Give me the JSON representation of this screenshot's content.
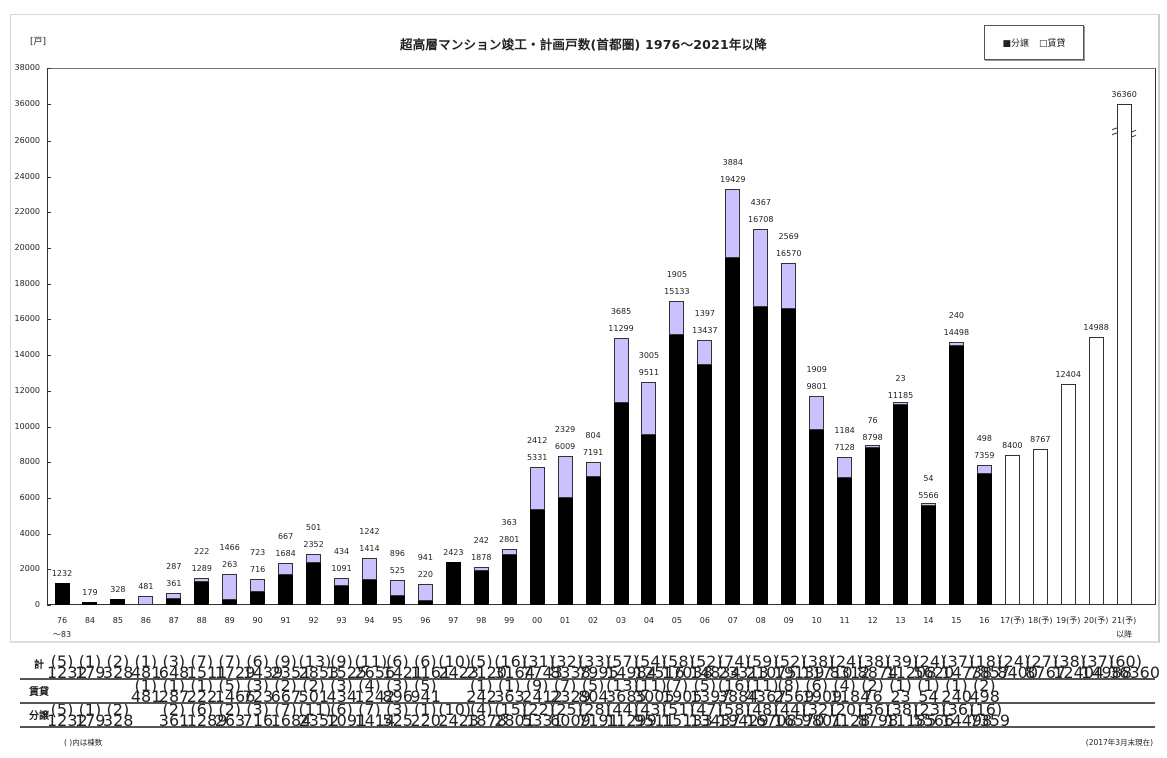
{
  "header": {
    "unit_label": "[戸]",
    "title": "超高層マンション竣工・計画戸数(首都圏) 1976〜2021年以降",
    "legend": {
      "sale": "■分譲",
      "rental": "□賃貸"
    }
  },
  "colors": {
    "sale": "#000000",
    "rental": "#ccc0ff",
    "planned": "#ffffff"
  },
  "y_axis": {
    "ticks": [
      "38000",
      "36000",
      "26000",
      "24000",
      "22000",
      "20000",
      "18000",
      "16000",
      "14000",
      "12000",
      "10000",
      "8000",
      "6000",
      "4000",
      "2000",
      "0"
    ]
  },
  "chart_data": {
    "type": "bar",
    "stacked": true,
    "title": "超高層マンション竣工・計画戸数(首都圏) 1976〜2021年以降",
    "ylabel": "[戸]",
    "xlabel": "",
    "ylim": [
      0,
      38000
    ],
    "axis_break": "26000〜36000",
    "legend_position": "top-right",
    "grid": false,
    "categories": [
      "76〜83",
      "84",
      "85",
      "86",
      "87",
      "88",
      "89",
      "90",
      "91",
      "92",
      "93",
      "94",
      "95",
      "96",
      "97",
      "98",
      "99",
      "00",
      "01",
      "02",
      "03",
      "04",
      "05",
      "06",
      "07",
      "08",
      "09",
      "10",
      "11",
      "12",
      "13",
      "14",
      "15",
      "16",
      "17(予)",
      "18(予)",
      "19(予)",
      "20(予)",
      "21(予)以降"
    ],
    "series": [
      {
        "name": "分譲",
        "values": [
          1232,
          179,
          328,
          0,
          361,
          1289,
          263,
          716,
          1684,
          2352,
          1091,
          1414,
          525,
          220,
          2423,
          1878,
          2801,
          5331,
          6009,
          7191,
          11299,
          9511,
          15133,
          13437,
          19429,
          16708,
          16570,
          9801,
          7128,
          8798,
          11185,
          5566,
          14498,
          7359,
          null,
          null,
          null,
          null,
          null
        ]
      },
      {
        "name": "賃貸",
        "values": [
          0,
          0,
          0,
          481,
          287,
          222,
          1466,
          723,
          667,
          501,
          434,
          1242,
          896,
          941,
          0,
          242,
          363,
          2412,
          2329,
          804,
          3685,
          3005,
          1905,
          1397,
          3884,
          4367,
          2569,
          1909,
          1184,
          76,
          23,
          54,
          240,
          498,
          null,
          null,
          null,
          null,
          null
        ]
      },
      {
        "name": "計画(合計)",
        "values": [
          null,
          null,
          null,
          null,
          null,
          null,
          null,
          null,
          null,
          null,
          null,
          null,
          null,
          null,
          null,
          null,
          null,
          null,
          null,
          null,
          null,
          null,
          null,
          null,
          null,
          null,
          null,
          null,
          null,
          null,
          null,
          null,
          null,
          null,
          8400,
          8767,
          12404,
          14988,
          36360
        ]
      }
    ],
    "totals": [
      1232,
      179,
      328,
      481,
      648,
      1511,
      1729,
      1439,
      2351,
      2853,
      1525,
      2656,
      1421,
      1161,
      2423,
      2120,
      3164,
      7743,
      8338,
      7995,
      14984,
      12516,
      17038,
      14834,
      23313,
      21075,
      19139,
      11710,
      8312,
      8874,
      11208,
      5620,
      14738,
      7857,
      8400,
      8767,
      12404,
      14988,
      36360
    ]
  },
  "table": {
    "row_labels": {
      "total": "計",
      "rental": "賃貸",
      "sale": "分譲"
    },
    "total_counts": [
      "(5)",
      "(1)",
      "(2)",
      "(1)",
      "(3)",
      "(7)",
      "(7)",
      "(6)",
      "(9)",
      "(13)",
      "(9)",
      "(11)",
      "(6)",
      "(6)",
      "(10)",
      "(5)",
      "(16)",
      "(31)",
      "(32)",
      "(33)",
      "(57)",
      "(54)",
      "(58)",
      "(52)",
      "(74)",
      "(59)",
      "(52)",
      "(38)",
      "(24)",
      "(38)",
      "(39)",
      "(24)",
      "(37)",
      "(18)",
      "(24)",
      "(27)",
      "(38)",
      "(37)",
      "(60)"
    ],
    "total_units": [
      "1232",
      "179",
      "328",
      "481",
      "648",
      "1511",
      "1729",
      "1439",
      "2351",
      "2853",
      "1525",
      "2656",
      "1421",
      "1161",
      "2423",
      "2120",
      "3164",
      "7743",
      "8338",
      "7995",
      "14984",
      "12516",
      "17038",
      "14834",
      "23313",
      "21075",
      "19139",
      "11710",
      "8312",
      "8874",
      "11208",
      "5620",
      "14738",
      "7857",
      "8400",
      "8767",
      "12404",
      "14988",
      "36360"
    ],
    "rental_counts": [
      "",
      "",
      "",
      "(1)",
      "(1)",
      "(1)",
      "(5)",
      "(3)",
      "(2)",
      "(2)",
      "(3)",
      "(4)",
      "(3)",
      "(5)",
      "",
      "(1)",
      "(1)",
      "(9)",
      "(7)",
      "(5)",
      "(13)",
      "(11)",
      "(7)",
      "(5)",
      "(16)",
      "(11)",
      "(8)",
      "(6)",
      "(4)",
      "(2)",
      "(1)",
      "(1)",
      "(1)",
      "(2)",
      "",
      "",
      "",
      "",
      ""
    ],
    "rental_units": [
      "",
      "",
      "",
      "481",
      "287",
      "222",
      "1466",
      "723",
      "667",
      "501",
      "434",
      "1242",
      "896",
      "941",
      "",
      "242",
      "363",
      "2412",
      "2329",
      "804",
      "3685",
      "3005",
      "1905",
      "1397",
      "3884",
      "4367",
      "2569",
      "1909",
      "1184",
      "76",
      "23",
      "54",
      "240",
      "498",
      "",
      "",
      "",
      "",
      ""
    ],
    "sale_counts": [
      "(5)",
      "(1)",
      "(2)",
      "",
      "(2)",
      "(6)",
      "(2)",
      "(3)",
      "(7)",
      "(11)",
      "(6)",
      "(7)",
      "(3)",
      "(1)",
      "(10)",
      "(4)",
      "(15)",
      "(22)",
      "(25)",
      "(28)",
      "(44)",
      "(43)",
      "(51)",
      "(47)",
      "(58)",
      "(48)",
      "(44)",
      "(32)",
      "(20)",
      "(36)",
      "(38)",
      "(23)",
      "(36)",
      "(16)",
      "",
      "",
      "",
      "",
      ""
    ],
    "sale_units": [
      "1232",
      "179",
      "328",
      "",
      "361",
      "1289",
      "263",
      "716",
      "1684",
      "2352",
      "1091",
      "1414",
      "525",
      "220",
      "2423",
      "1878",
      "2801",
      "5331",
      "6009",
      "7191",
      "11299",
      "9511",
      "15133",
      "13437",
      "19429",
      "16708",
      "16570",
      "9801",
      "7128",
      "8798",
      "11185",
      "5566",
      "14498",
      "7359",
      "",
      "",
      "",
      "",
      ""
    ]
  },
  "footer": {
    "note_left": "( )内は棟数",
    "note_right": "(2017年3月末現在)"
  }
}
